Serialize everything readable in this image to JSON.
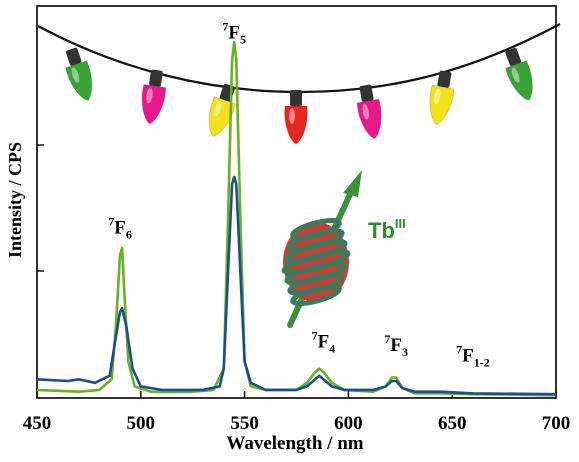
{
  "chart_data": {
    "type": "line",
    "xlabel": "Wavelength / nm",
    "ylabel": "Intensity / CPS",
    "xlim": [
      450,
      700
    ],
    "xticks": [
      450,
      500,
      550,
      600,
      650,
      700
    ],
    "y_units": "arbitrary (no numeric tick labels)",
    "grid": false,
    "legend": "none",
    "annotations": [
      {
        "text": "F",
        "sup": "7",
        "sub": "6",
        "x": 490,
        "y": 0.46
      },
      {
        "text": "F",
        "sup": "7",
        "sub": "5",
        "x": 545,
        "y": 1.01
      },
      {
        "text": "F",
        "sup": "7",
        "sub": "4",
        "x": 588,
        "y": 0.14
      },
      {
        "text": "F",
        "sup": "7",
        "sub": "3",
        "x": 623,
        "y": 0.13
      },
      {
        "text": "F",
        "sup": "7",
        "sub": "1-2",
        "x": 660,
        "y": 0.1
      }
    ],
    "inset_label": {
      "text": "Tb",
      "sup": "III",
      "color": "#2e8b2e"
    },
    "series": [
      {
        "color": "#6ab023",
        "points": [
          [
            450,
            0.02
          ],
          [
            470,
            0.015
          ],
          [
            480,
            0.02
          ],
          [
            486,
            0.05
          ],
          [
            488,
            0.2
          ],
          [
            490,
            0.4
          ],
          [
            491,
            0.42
          ],
          [
            492,
            0.3
          ],
          [
            494,
            0.1
          ],
          [
            497,
            0.03
          ],
          [
            505,
            0.015
          ],
          [
            525,
            0.015
          ],
          [
            535,
            0.02
          ],
          [
            540,
            0.08
          ],
          [
            542,
            0.5
          ],
          [
            544,
            0.95
          ],
          [
            545,
            1.0
          ],
          [
            546,
            0.95
          ],
          [
            548,
            0.5
          ],
          [
            550,
            0.1
          ],
          [
            553,
            0.03
          ],
          [
            560,
            0.02
          ],
          [
            575,
            0.02
          ],
          [
            580,
            0.04
          ],
          [
            584,
            0.07
          ],
          [
            586,
            0.08
          ],
          [
            588,
            0.07
          ],
          [
            592,
            0.04
          ],
          [
            598,
            0.02
          ],
          [
            612,
            0.015
          ],
          [
            618,
            0.03
          ],
          [
            621,
            0.055
          ],
          [
            623,
            0.055
          ],
          [
            626,
            0.025
          ],
          [
            632,
            0.01
          ],
          [
            645,
            0.01
          ],
          [
            660,
            0.008
          ],
          [
            700,
            0.005
          ]
        ]
      },
      {
        "color": "#1a4f8c",
        "points": [
          [
            450,
            0.05
          ],
          [
            465,
            0.045
          ],
          [
            470,
            0.05
          ],
          [
            478,
            0.04
          ],
          [
            485,
            0.06
          ],
          [
            488,
            0.17
          ],
          [
            490,
            0.24
          ],
          [
            491,
            0.25
          ],
          [
            493,
            0.2
          ],
          [
            496,
            0.08
          ],
          [
            500,
            0.03
          ],
          [
            510,
            0.02
          ],
          [
            530,
            0.02
          ],
          [
            538,
            0.03
          ],
          [
            540,
            0.08
          ],
          [
            542,
            0.35
          ],
          [
            544,
            0.6
          ],
          [
            545,
            0.62
          ],
          [
            546,
            0.6
          ],
          [
            548,
            0.35
          ],
          [
            550,
            0.1
          ],
          [
            553,
            0.04
          ],
          [
            560,
            0.02
          ],
          [
            575,
            0.02
          ],
          [
            580,
            0.03
          ],
          [
            584,
            0.05
          ],
          [
            586,
            0.06
          ],
          [
            588,
            0.05
          ],
          [
            592,
            0.03
          ],
          [
            598,
            0.02
          ],
          [
            612,
            0.02
          ],
          [
            618,
            0.03
          ],
          [
            621,
            0.045
          ],
          [
            623,
            0.045
          ],
          [
            626,
            0.025
          ],
          [
            632,
            0.015
          ],
          [
            645,
            0.015
          ],
          [
            660,
            0.01
          ],
          [
            700,
            0.008
          ]
        ]
      }
    ]
  },
  "decor": {
    "bulb_colors": [
      "#3aa335",
      "#e8178a",
      "#f2e21a",
      "#e8281e",
      "#e8178a",
      "#f2e21a",
      "#3aa335"
    ],
    "coil_color": "#3d7a5a",
    "arrow_color": "#3f8f3a"
  }
}
